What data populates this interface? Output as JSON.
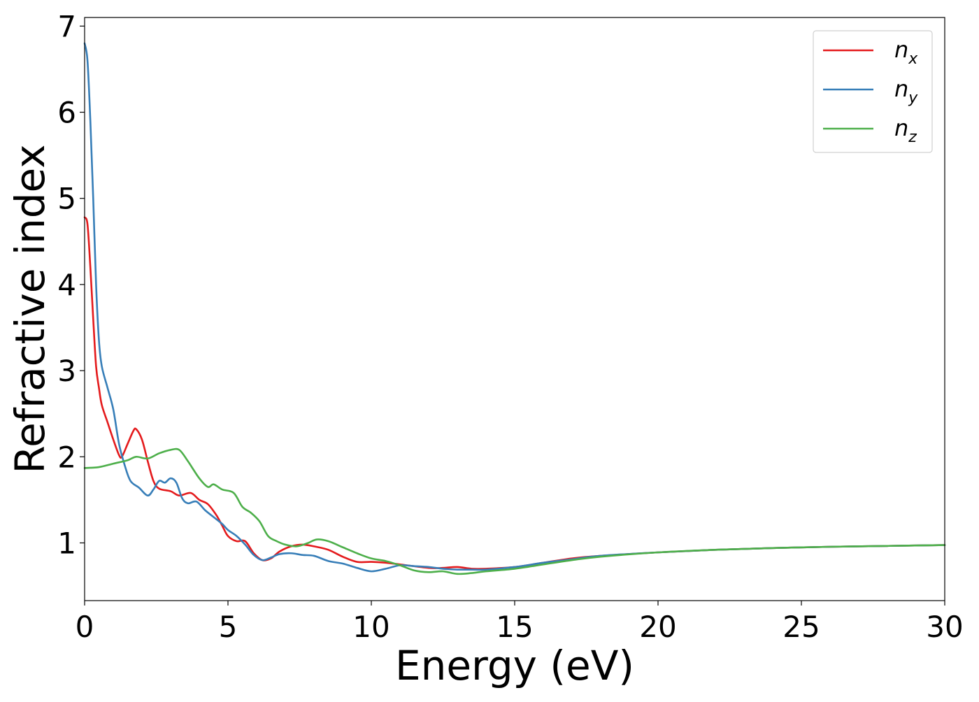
{
  "chart_data": {
    "type": "line",
    "xlabel": "Energy (eV)",
    "ylabel": "Refractive index",
    "xlim": [
      0,
      30
    ],
    "ylim": [
      0.33,
      7.1
    ],
    "xticks": [
      0,
      5,
      10,
      15,
      20,
      25,
      30
    ],
    "xtick_labels": [
      "0",
      "5",
      "10",
      "15",
      "20",
      "25",
      "30"
    ],
    "yticks": [
      1,
      2,
      3,
      4,
      5,
      6,
      7
    ],
    "ytick_labels": [
      "1",
      "2",
      "3",
      "4",
      "5",
      "6",
      "7"
    ],
    "grid": false,
    "legend_position": "top-right",
    "series": [
      {
        "name": "n_x",
        "label_base": "n",
        "label_sub": "x",
        "color": "#e41a1c",
        "points": [
          [
            0,
            4.78
          ],
          [
            0.1,
            4.7
          ],
          [
            0.2,
            4.2
          ],
          [
            0.3,
            3.6
          ],
          [
            0.4,
            3.05
          ],
          [
            0.5,
            2.8
          ],
          [
            0.6,
            2.6
          ],
          [
            0.8,
            2.4
          ],
          [
            1.0,
            2.2
          ],
          [
            1.2,
            2.02
          ],
          [
            1.3,
            2.0
          ],
          [
            1.5,
            2.15
          ],
          [
            1.7,
            2.3
          ],
          [
            1.8,
            2.32
          ],
          [
            2.0,
            2.2
          ],
          [
            2.2,
            1.95
          ],
          [
            2.4,
            1.72
          ],
          [
            2.6,
            1.63
          ],
          [
            3.0,
            1.6
          ],
          [
            3.3,
            1.55
          ],
          [
            3.7,
            1.58
          ],
          [
            4.0,
            1.5
          ],
          [
            4.3,
            1.45
          ],
          [
            4.6,
            1.32
          ],
          [
            4.8,
            1.2
          ],
          [
            5.0,
            1.08
          ],
          [
            5.3,
            1.02
          ],
          [
            5.6,
            1.02
          ],
          [
            5.9,
            0.88
          ],
          [
            6.2,
            0.8
          ],
          [
            6.5,
            0.82
          ],
          [
            6.8,
            0.9
          ],
          [
            7.2,
            0.96
          ],
          [
            7.6,
            0.98
          ],
          [
            8.0,
            0.96
          ],
          [
            8.5,
            0.92
          ],
          [
            9.0,
            0.84
          ],
          [
            9.5,
            0.78
          ],
          [
            10.0,
            0.78
          ],
          [
            10.5,
            0.77
          ],
          [
            11.0,
            0.75
          ],
          [
            12.0,
            0.71
          ],
          [
            12.5,
            0.71
          ],
          [
            13.0,
            0.72
          ],
          [
            13.5,
            0.7
          ],
          [
            14.0,
            0.7
          ],
          [
            15.0,
            0.72
          ],
          [
            16.0,
            0.77
          ],
          [
            17.0,
            0.82
          ],
          [
            18.0,
            0.85
          ],
          [
            20.0,
            0.89
          ],
          [
            22.0,
            0.92
          ],
          [
            24.0,
            0.94
          ],
          [
            26.0,
            0.955
          ],
          [
            28.0,
            0.965
          ],
          [
            30.0,
            0.975
          ]
        ]
      },
      {
        "name": "n_y",
        "label_base": "n",
        "label_sub": "y",
        "color": "#377eb8",
        "points": [
          [
            0,
            6.8
          ],
          [
            0.1,
            6.6
          ],
          [
            0.2,
            5.9
          ],
          [
            0.3,
            5.0
          ],
          [
            0.4,
            4.0
          ],
          [
            0.5,
            3.35
          ],
          [
            0.6,
            3.05
          ],
          [
            0.8,
            2.8
          ],
          [
            1.0,
            2.55
          ],
          [
            1.2,
            2.15
          ],
          [
            1.4,
            1.9
          ],
          [
            1.6,
            1.72
          ],
          [
            1.9,
            1.64
          ],
          [
            2.2,
            1.55
          ],
          [
            2.4,
            1.62
          ],
          [
            2.6,
            1.72
          ],
          [
            2.8,
            1.7
          ],
          [
            3.0,
            1.75
          ],
          [
            3.2,
            1.7
          ],
          [
            3.4,
            1.52
          ],
          [
            3.6,
            1.46
          ],
          [
            3.9,
            1.48
          ],
          [
            4.2,
            1.38
          ],
          [
            4.5,
            1.3
          ],
          [
            4.8,
            1.22
          ],
          [
            5.0,
            1.15
          ],
          [
            5.3,
            1.08
          ],
          [
            5.6,
            0.98
          ],
          [
            5.9,
            0.86
          ],
          [
            6.2,
            0.8
          ],
          [
            6.5,
            0.83
          ],
          [
            6.8,
            0.87
          ],
          [
            7.2,
            0.88
          ],
          [
            7.6,
            0.86
          ],
          [
            8.0,
            0.85
          ],
          [
            8.5,
            0.79
          ],
          [
            9.0,
            0.76
          ],
          [
            9.5,
            0.71
          ],
          [
            10.0,
            0.67
          ],
          [
            10.5,
            0.7
          ],
          [
            11.0,
            0.74
          ],
          [
            11.5,
            0.73
          ],
          [
            12.0,
            0.72
          ],
          [
            12.5,
            0.7
          ],
          [
            13.0,
            0.69
          ],
          [
            13.5,
            0.69
          ],
          [
            14.0,
            0.69
          ],
          [
            15.0,
            0.72
          ],
          [
            16.0,
            0.77
          ],
          [
            17.0,
            0.81
          ],
          [
            18.0,
            0.85
          ],
          [
            20.0,
            0.89
          ],
          [
            22.0,
            0.92
          ],
          [
            24.0,
            0.94
          ],
          [
            26.0,
            0.955
          ],
          [
            28.0,
            0.965
          ],
          [
            30.0,
            0.975
          ]
        ]
      },
      {
        "name": "n_z",
        "label_base": "n",
        "label_sub": "z",
        "color": "#4daf4a",
        "points": [
          [
            0,
            1.87
          ],
          [
            0.5,
            1.88
          ],
          [
            1.0,
            1.92
          ],
          [
            1.5,
            1.96
          ],
          [
            1.8,
            2.0
          ],
          [
            2.2,
            1.98
          ],
          [
            2.6,
            2.04
          ],
          [
            3.0,
            2.08
          ],
          [
            3.3,
            2.08
          ],
          [
            3.6,
            1.95
          ],
          [
            4.0,
            1.75
          ],
          [
            4.3,
            1.65
          ],
          [
            4.5,
            1.68
          ],
          [
            4.8,
            1.62
          ],
          [
            5.2,
            1.58
          ],
          [
            5.5,
            1.42
          ],
          [
            5.8,
            1.35
          ],
          [
            6.1,
            1.25
          ],
          [
            6.4,
            1.08
          ],
          [
            6.7,
            1.02
          ],
          [
            7.0,
            0.98
          ],
          [
            7.4,
            0.96
          ],
          [
            7.8,
            1.0
          ],
          [
            8.1,
            1.04
          ],
          [
            8.5,
            1.02
          ],
          [
            9.0,
            0.95
          ],
          [
            9.5,
            0.88
          ],
          [
            10.0,
            0.82
          ],
          [
            10.5,
            0.79
          ],
          [
            11.0,
            0.74
          ],
          [
            11.5,
            0.68
          ],
          [
            12.0,
            0.66
          ],
          [
            12.5,
            0.67
          ],
          [
            13.0,
            0.64
          ],
          [
            13.5,
            0.65
          ],
          [
            14.0,
            0.67
          ],
          [
            15.0,
            0.7
          ],
          [
            16.0,
            0.75
          ],
          [
            17.0,
            0.8
          ],
          [
            18.0,
            0.84
          ],
          [
            20.0,
            0.89
          ],
          [
            22.0,
            0.92
          ],
          [
            24.0,
            0.94
          ],
          [
            26.0,
            0.955
          ],
          [
            28.0,
            0.965
          ],
          [
            30.0,
            0.975
          ]
        ]
      }
    ]
  }
}
